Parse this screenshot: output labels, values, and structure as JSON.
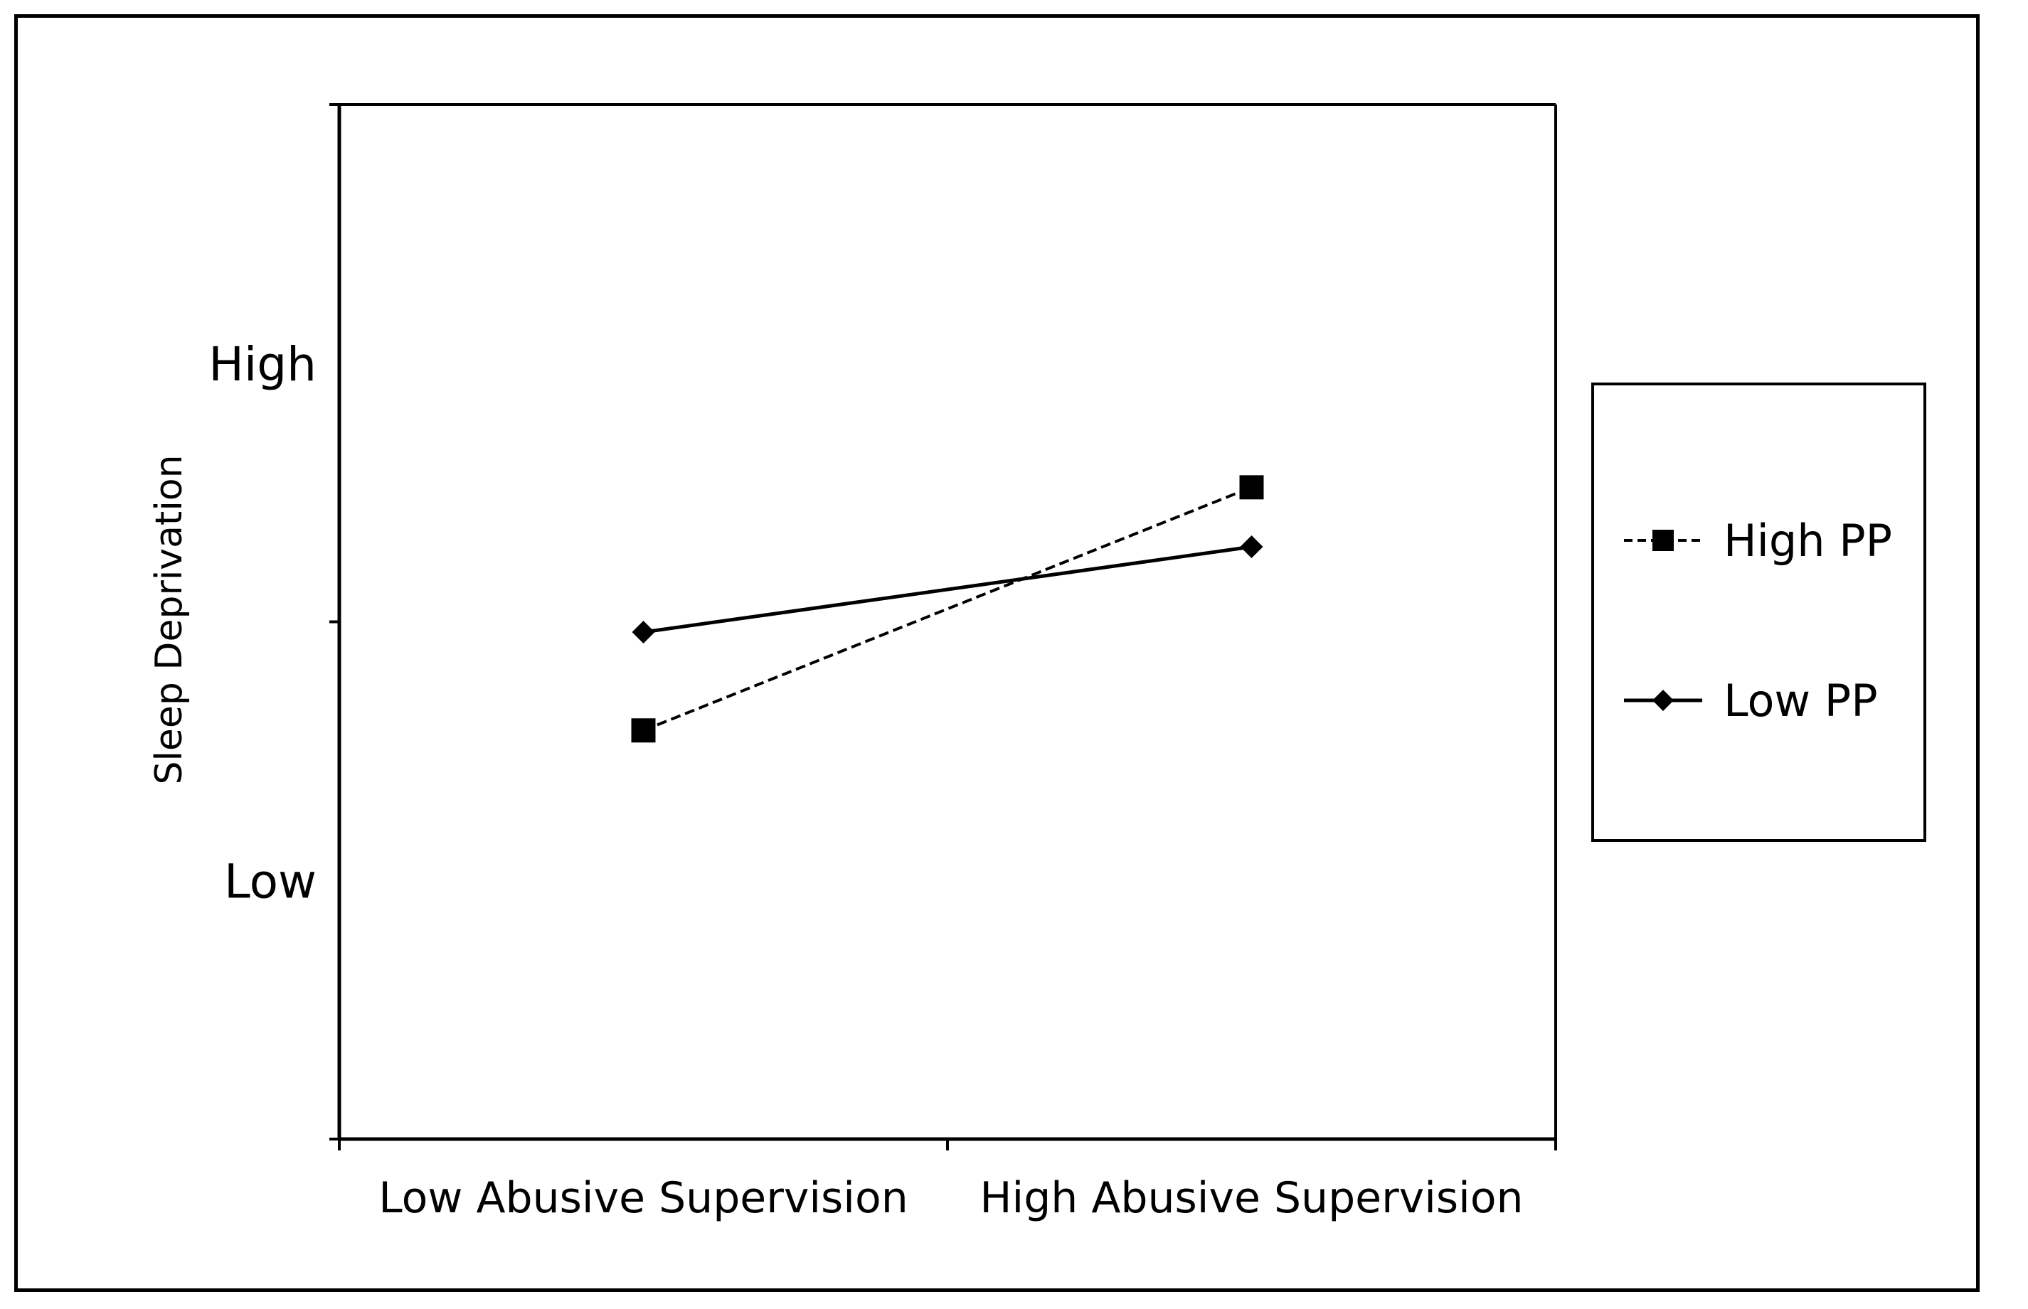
{
  "chart_data": {
    "type": "line",
    "categories": [
      "Low Abusive Supervision",
      "High Abusive Supervision"
    ],
    "ylabel": "Sleep Deprivation",
    "xlabel": "",
    "y_tick_labels": [
      {
        "label": "High",
        "value": 1
      },
      {
        "label": "Low",
        "value": -1
      }
    ],
    "ylim": [
      -2,
      2
    ],
    "grid": false,
    "legend_position": "right",
    "series": [
      {
        "name": "High PP",
        "values": [
          -0.42,
          0.52
        ],
        "line_style": "dashed",
        "marker": "square",
        "color": "#000000"
      },
      {
        "name": "Low PP",
        "values": [
          -0.04,
          0.29
        ],
        "line_style": "solid",
        "marker": "diamond",
        "color": "#000000"
      }
    ]
  }
}
